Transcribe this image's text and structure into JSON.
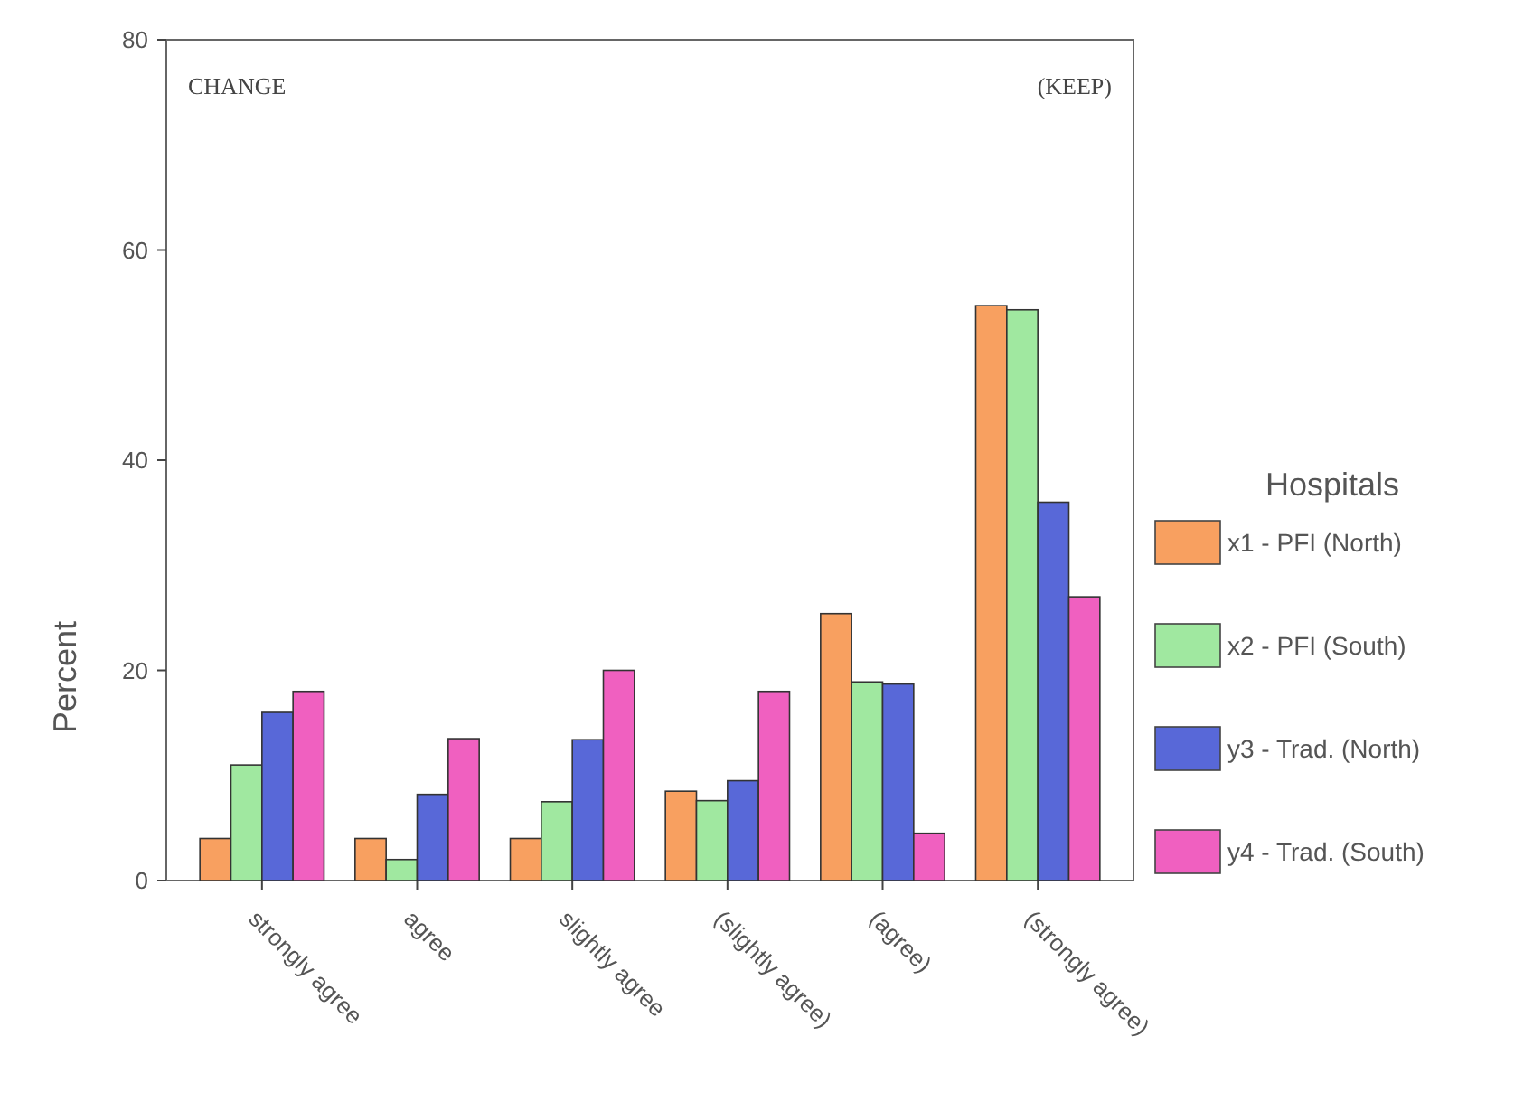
{
  "chart_data": {
    "type": "bar",
    "ylabel": "Percent",
    "legend_title": "Hospitals",
    "legend": "right",
    "grid": false,
    "categories": [
      "strongly agree",
      "agree",
      "slightly agree",
      "(slightly agree)",
      "(agree)",
      "(strongly agree)"
    ],
    "ylim": [
      0,
      80
    ],
    "yticks": [
      0,
      20,
      40,
      60,
      80
    ],
    "annotations": [
      "CHANGE",
      "(KEEP)"
    ],
    "series": [
      {
        "name": "x1 - PFI (North)",
        "color": "#f8a060",
        "values": [
          4,
          4,
          4,
          8.5,
          25.4,
          54.7
        ]
      },
      {
        "name": "x2 - PFI (South)",
        "color": "#a0e8a0",
        "values": [
          11,
          2,
          7.5,
          7.6,
          18.9,
          54.3
        ]
      },
      {
        "name": "y3 - Trad. (North)",
        "color": "#5868d8",
        "values": [
          16,
          8.2,
          13.4,
          9.5,
          18.7,
          36
        ]
      },
      {
        "name": "y4 - Trad. (South)",
        "color": "#f060c0",
        "values": [
          18,
          13.5,
          20,
          18,
          4.5,
          27
        ]
      }
    ]
  }
}
